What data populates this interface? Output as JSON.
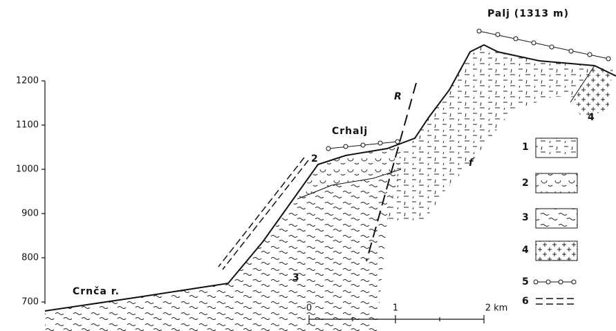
{
  "axis": {
    "ticks": [
      "1200",
      "1100",
      "1000",
      "900",
      "800",
      "700"
    ]
  },
  "labels": {
    "peak": "Palj (1313 m)",
    "ridge": "Crhalj",
    "river": "Crnča r.",
    "fault": "R",
    "fault_small": "f",
    "unit_2": "2",
    "unit_3": "3",
    "unit_4": "4"
  },
  "scale": {
    "ticks": [
      "0",
      "1",
      "2 km"
    ]
  },
  "legend": [
    "1",
    "2",
    "3",
    "4",
    "5",
    "6"
  ]
}
